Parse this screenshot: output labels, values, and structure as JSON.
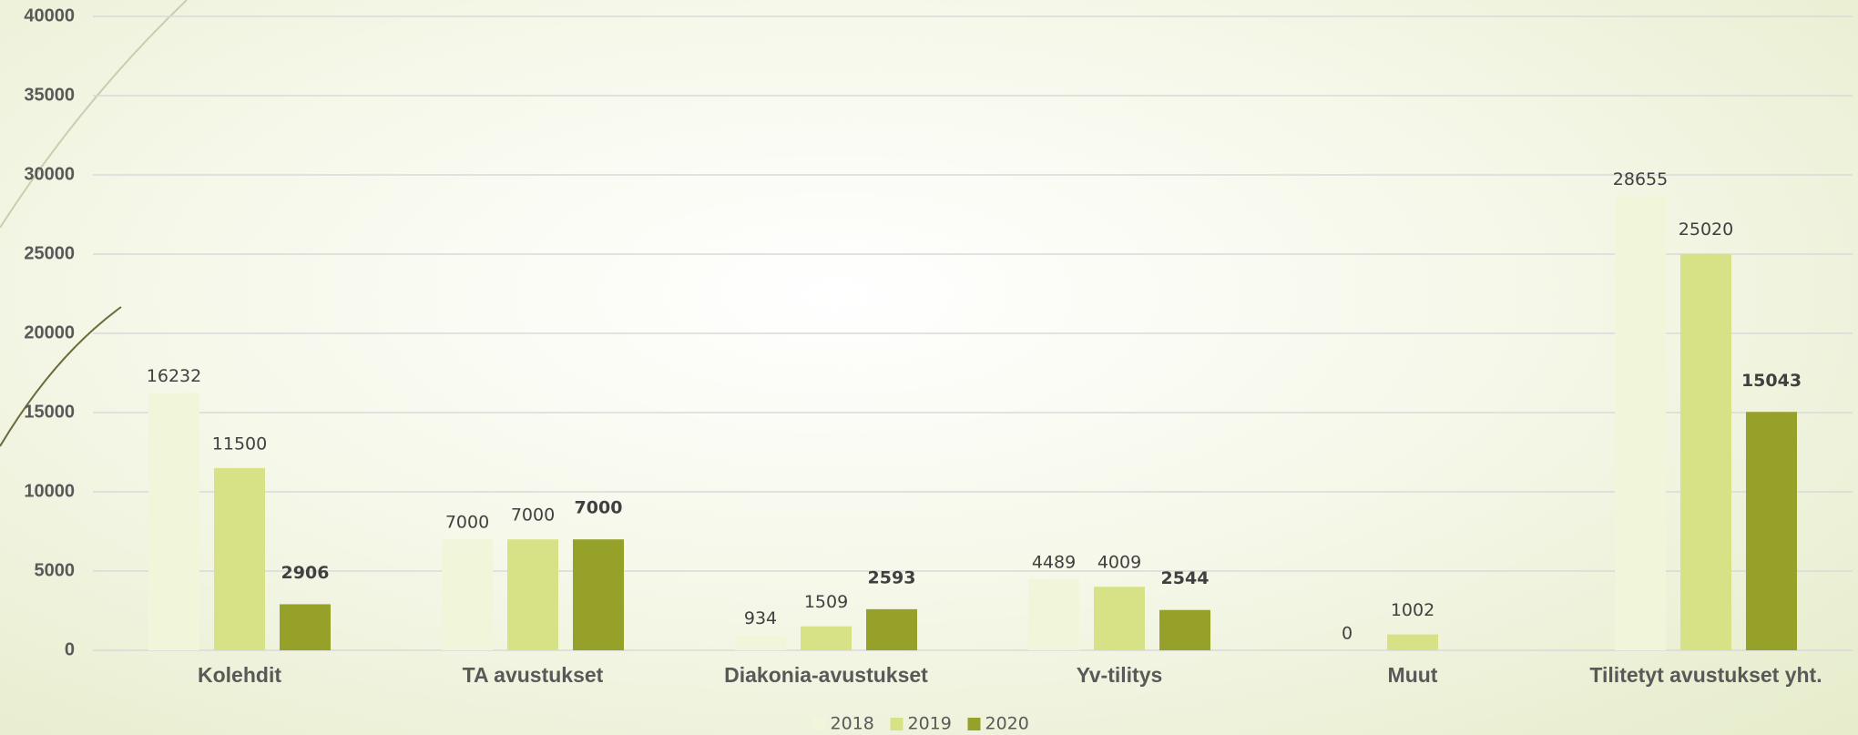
{
  "chart_data": {
    "type": "bar",
    "categories": [
      "Kolehdit",
      "TA avustukset",
      "Diakonia-avustukset",
      "Yv-tilitys",
      "Muut",
      "Tilitetyt avustukset yht."
    ],
    "series": [
      {
        "name": "2018",
        "color": "#f1f5da",
        "values": [
          16232,
          7000,
          934,
          4489,
          0,
          28655
        ]
      },
      {
        "name": "2019",
        "color": "#d7e287",
        "values": [
          11500,
          7000,
          1509,
          4009,
          1002,
          25020
        ]
      },
      {
        "name": "2020",
        "color": "#96a12a",
        "values": [
          2906,
          7000,
          2593,
          2544,
          null,
          15043
        ]
      }
    ],
    "ylim": [
      0,
      40000
    ],
    "yticks": [
      0,
      5000,
      10000,
      15000,
      20000,
      25000,
      30000,
      35000,
      40000
    ],
    "grid": true,
    "legend": "bottom"
  }
}
